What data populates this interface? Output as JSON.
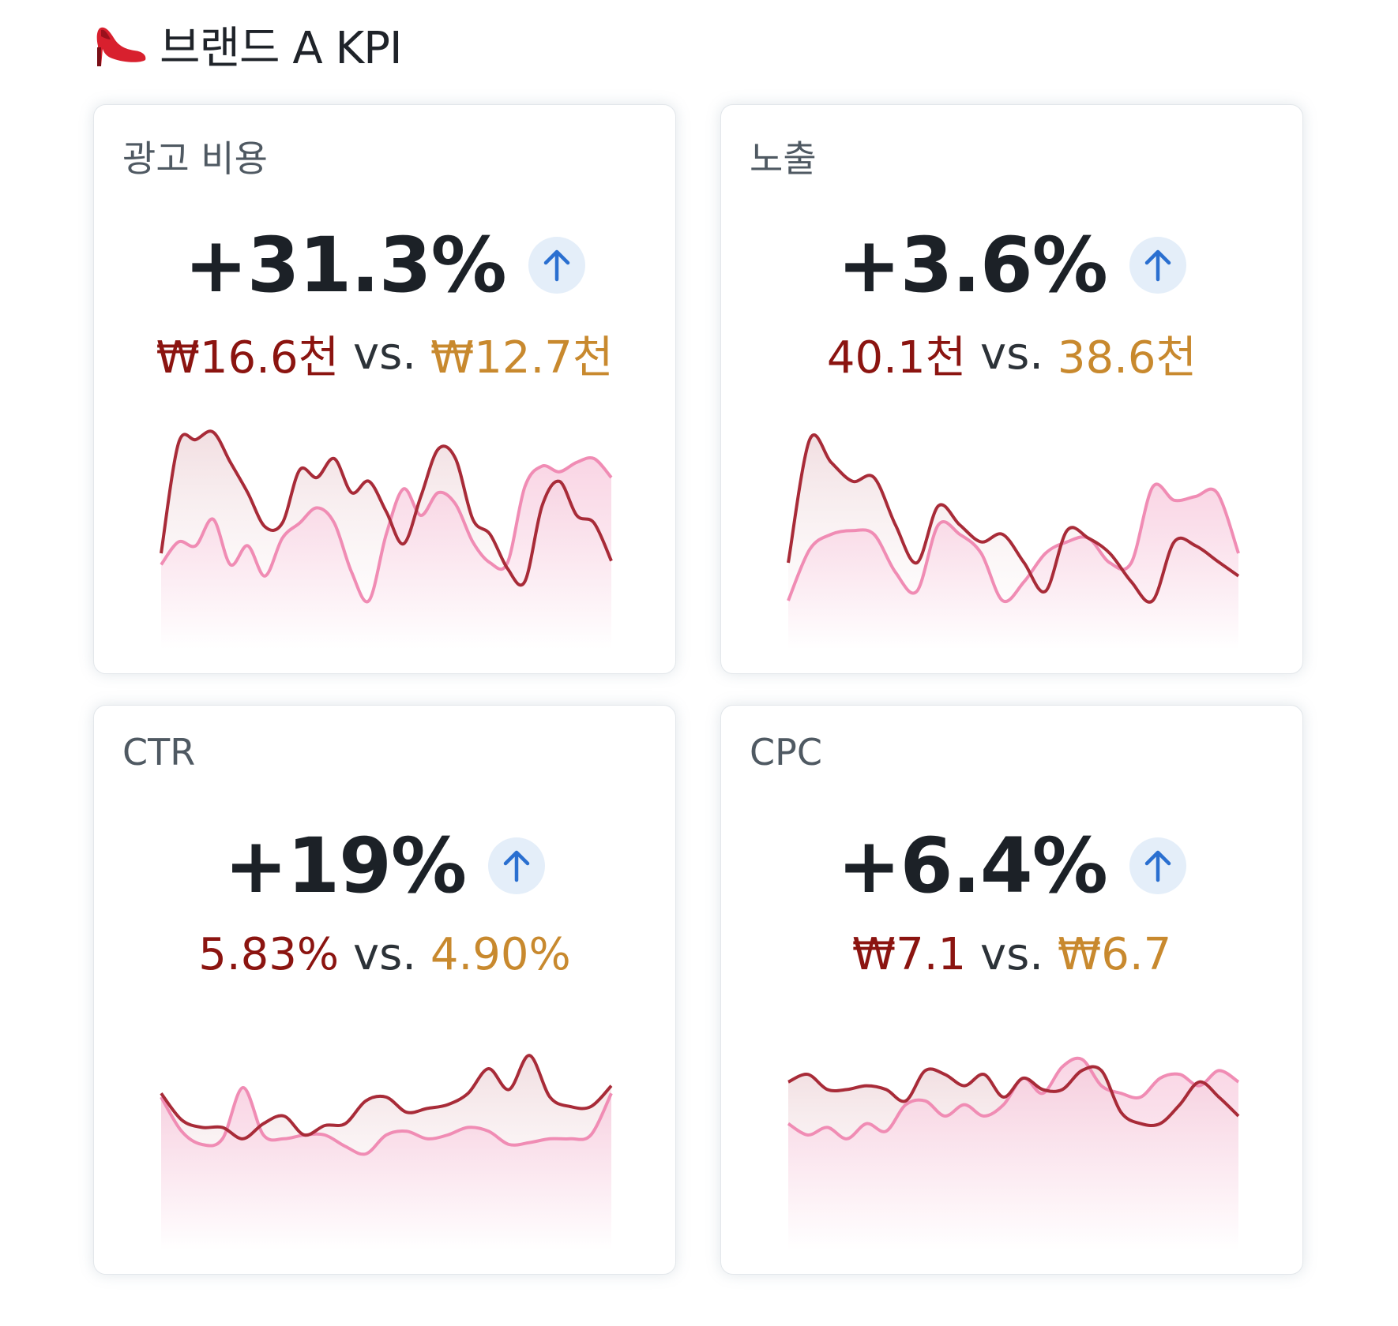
{
  "header": {
    "icon": "high-heel-icon",
    "title": "브랜드 A KPI"
  },
  "colors": {
    "current": "#8b1410",
    "previous": "#c8892e",
    "vs_text": "#2c3238",
    "line_current": "#a82b38",
    "line_previous": "#f08cb4",
    "badge_bg": "#e4eef9",
    "arrow": "#2a6fd0"
  },
  "cards": [
    {
      "label": "광고 비용",
      "value": "+31.3%",
      "trend_icon": "arrow-up-icon",
      "current": "₩16.6천",
      "vs": " vs. ",
      "previous": "₩12.7천",
      "series_current": [
        0.3,
        0.88,
        0.9,
        0.94,
        0.78,
        0.62,
        0.44,
        0.46,
        0.74,
        0.7,
        0.8,
        0.62,
        0.68,
        0.52,
        0.35,
        0.6,
        0.85,
        0.8,
        0.48,
        0.4,
        0.22,
        0.15,
        0.55,
        0.68,
        0.5,
        0.46,
        0.26
      ],
      "series_previous": [
        0.24,
        0.36,
        0.34,
        0.48,
        0.24,
        0.34,
        0.18,
        0.38,
        0.46,
        0.54,
        0.46,
        0.2,
        0.05,
        0.4,
        0.64,
        0.5,
        0.62,
        0.56,
        0.36,
        0.25,
        0.25,
        0.65,
        0.76,
        0.73,
        0.78,
        0.8,
        0.7
      ]
    },
    {
      "label": "노출",
      "value": "+3.6%",
      "trend_icon": "arrow-up-icon",
      "current": "40.1천",
      "vs": " vs. ",
      "previous": "38.6천",
      "series_current": [
        0.25,
        0.9,
        0.78,
        0.68,
        0.7,
        0.45,
        0.25,
        0.55,
        0.45,
        0.36,
        0.4,
        0.25,
        0.1,
        0.42,
        0.38,
        0.3,
        0.15,
        0.05,
        0.36,
        0.34,
        0.26,
        0.18
      ],
      "series_previous": [
        0.05,
        0.32,
        0.4,
        0.42,
        0.4,
        0.2,
        0.1,
        0.45,
        0.4,
        0.3,
        0.05,
        0.15,
        0.3,
        0.36,
        0.38,
        0.25,
        0.25,
        0.65,
        0.58,
        0.6,
        0.62,
        0.3
      ]
    },
    {
      "label": "CTR",
      "value": "+19%",
      "trend_icon": "arrow-up-icon",
      "current": "5.83%",
      "vs": " vs. ",
      "previous": "4.90%",
      "series_current": [
        0.62,
        0.48,
        0.44,
        0.44,
        0.38,
        0.46,
        0.5,
        0.4,
        0.45,
        0.46,
        0.58,
        0.6,
        0.52,
        0.54,
        0.56,
        0.62,
        0.75,
        0.64,
        0.82,
        0.6,
        0.55,
        0.55,
        0.66
      ],
      "series_previous": [
        0.6,
        0.42,
        0.35,
        0.38,
        0.65,
        0.4,
        0.38,
        0.4,
        0.4,
        0.34,
        0.3,
        0.4,
        0.42,
        0.38,
        0.4,
        0.44,
        0.42,
        0.35,
        0.36,
        0.38,
        0.38,
        0.4,
        0.62
      ],
      "ylim": [
        0,
        1
      ]
    },
    {
      "label": "CPC",
      "value": "+6.4%",
      "trend_icon": "arrow-up-icon",
      "current": "₩7.1",
      "vs": " vs. ",
      "previous": "₩6.7",
      "series_current": [
        0.68,
        0.72,
        0.64,
        0.64,
        0.66,
        0.64,
        0.58,
        0.74,
        0.72,
        0.66,
        0.72,
        0.6,
        0.7,
        0.64,
        0.64,
        0.74,
        0.74,
        0.52,
        0.46,
        0.46,
        0.56,
        0.68,
        0.6,
        0.5
      ],
      "series_previous": [
        0.46,
        0.4,
        0.44,
        0.38,
        0.46,
        0.42,
        0.56,
        0.58,
        0.5,
        0.56,
        0.5,
        0.56,
        0.7,
        0.62,
        0.76,
        0.8,
        0.66,
        0.62,
        0.6,
        0.7,
        0.72,
        0.66,
        0.74,
        0.68
      ]
    }
  ]
}
